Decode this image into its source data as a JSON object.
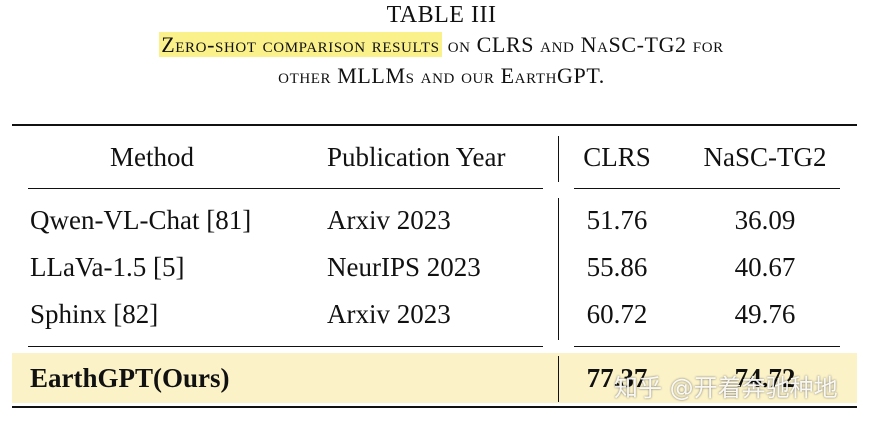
{
  "caption": {
    "label": "TABLE III",
    "highlight": "Zero-shot comparison results",
    "line1_rest": " on CLRS and NaSC-TG2 for",
    "line2": "other MLLMs and our EarthGPT."
  },
  "table": {
    "headers": [
      "Method",
      "Publication Year",
      "CLRS",
      "NaSC-TG2"
    ],
    "rows": [
      [
        "Qwen-VL-Chat [81]",
        "Arxiv 2023",
        "51.76",
        "36.09"
      ],
      [
        "LLaVa-1.5 [5]",
        "NeurIPS 2023",
        "55.86",
        "40.67"
      ],
      [
        "Sphinx [82]",
        "Arxiv 2023",
        "60.72",
        "49.76"
      ]
    ],
    "ours": {
      "method": "EarthGPT(Ours)",
      "year": "",
      "clrs": "77.37",
      "nasc": "74.72"
    }
  },
  "watermark": "知乎 @开着奔驰种地",
  "colors": {
    "highlight": "#fbf18a",
    "row_highlight": "#fbf2c8"
  }
}
